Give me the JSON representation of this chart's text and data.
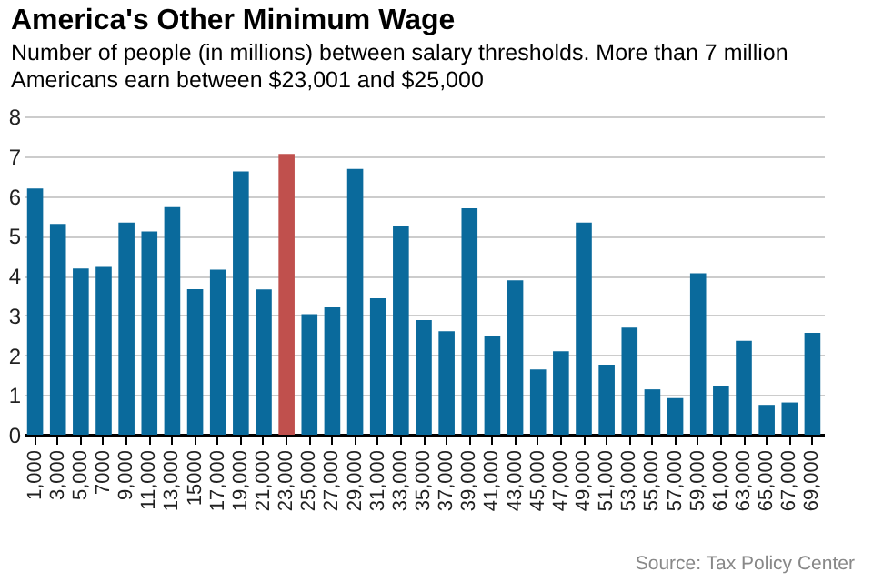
{
  "chart_data": {
    "type": "bar",
    "title": "America's Other Minimum Wage",
    "subtitle": "Number of people (in millions) between salary thresholds. More than 7 million Americans earn between $23,001 and $25,000",
    "categories": [
      "1,000",
      "3,000",
      "5,000",
      "7000",
      "9,000",
      "11,000",
      "13,000",
      "15000",
      "17,000",
      "19,000",
      "21,000",
      "23,000",
      "25,000",
      "27,000",
      "29,000",
      "31,000",
      "33,000",
      "35,000",
      "37,000",
      "39,000",
      "41,000",
      "43,000",
      "45,000",
      "47,000",
      "49,000",
      "51,000",
      "53,000",
      "55,000",
      "57,000",
      "59,000",
      "61,000",
      "63,000",
      "65,000",
      "67,000",
      "69,000"
    ],
    "values": [
      6.19,
      5.3,
      4.18,
      4.22,
      5.33,
      5.11,
      5.72,
      3.66,
      4.15,
      6.62,
      3.65,
      7.06,
      3.03,
      3.2,
      6.68,
      3.43,
      5.24,
      2.88,
      2.6,
      5.69,
      2.47,
      3.88,
      1.64,
      2.1,
      5.33,
      1.76,
      2.69,
      1.14,
      0.92,
      4.06,
      1.21,
      2.36,
      0.75,
      0.81,
      2.56
    ],
    "colors": [
      "#0a6a9c",
      "#0a6a9c",
      "#0a6a9c",
      "#0a6a9c",
      "#0a6a9c",
      "#0a6a9c",
      "#0a6a9c",
      "#0a6a9c",
      "#0a6a9c",
      "#0a6a9c",
      "#0a6a9c",
      "#c0504d",
      "#0a6a9c",
      "#0a6a9c",
      "#0a6a9c",
      "#0a6a9c",
      "#0a6a9c",
      "#0a6a9c",
      "#0a6a9c",
      "#0a6a9c",
      "#0a6a9c",
      "#0a6a9c",
      "#0a6a9c",
      "#0a6a9c",
      "#0a6a9c",
      "#0a6a9c",
      "#0a6a9c",
      "#0a6a9c",
      "#0a6a9c",
      "#0a6a9c",
      "#0a6a9c",
      "#0a6a9c",
      "#0a6a9c",
      "#0a6a9c",
      "#0a6a9c"
    ],
    "ylim": [
      0,
      8
    ],
    "yticks": [
      0,
      1,
      2,
      3,
      4,
      5,
      6,
      7,
      8
    ],
    "grid": "y",
    "annotations": [
      "Source: Tax Policy Center"
    ]
  }
}
